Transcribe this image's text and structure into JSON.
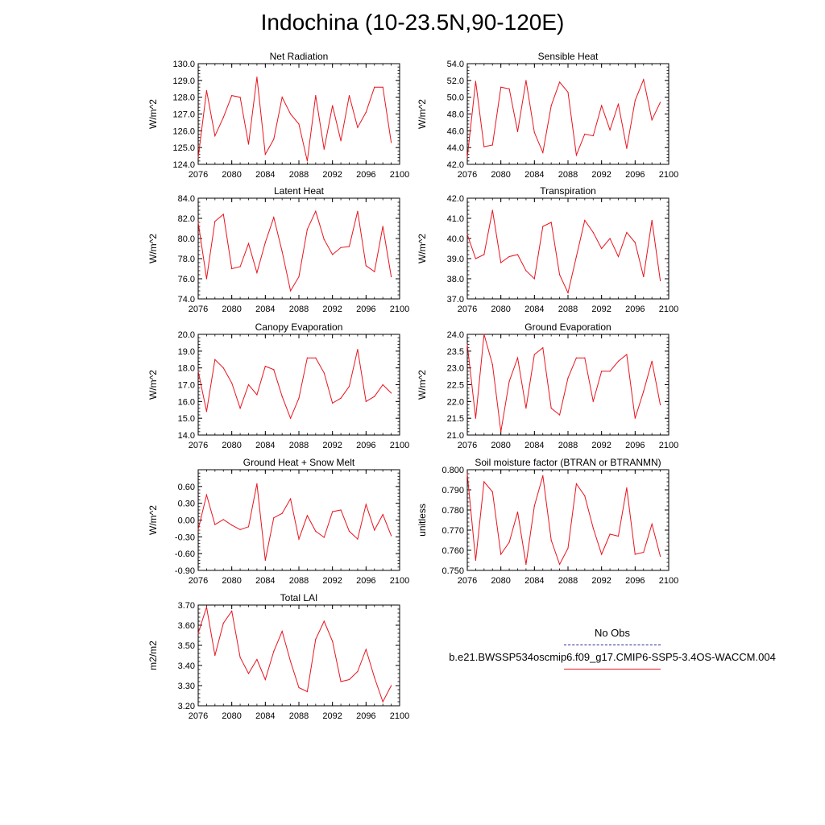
{
  "figure": {
    "title": "Indochina (10-23.5N,90-120E)",
    "line_color": "#e8141e"
  },
  "legend": {
    "obs_label": "No Obs",
    "obs_color": "#2b2b8f",
    "model_label": "b.e21.BWSSP534oscmip6.f09_g17.CMIP6-SSP5-3.4OS-WACCM.004",
    "model_color": "#e8141e"
  },
  "chart_data": [
    {
      "type": "line",
      "title": "Net Radiation",
      "ylabel": "W/m^2",
      "ylim": [
        124.0,
        130.0
      ],
      "yticks": [
        "124.0",
        "125.0",
        "126.0",
        "127.0",
        "128.0",
        "129.0",
        "130.0"
      ],
      "xlim": [
        2076,
        2100
      ],
      "xticks": [
        "2076",
        "2080",
        "2084",
        "2088",
        "2092",
        "2096",
        "2100"
      ],
      "x": [
        2076,
        2077,
        2078,
        2079,
        2080,
        2081,
        2082,
        2083,
        2084,
        2085,
        2086,
        2087,
        2088,
        2089,
        2090,
        2091,
        2092,
        2093,
        2094,
        2095,
        2096,
        2097,
        2098,
        2099
      ],
      "values": [
        124.4,
        128.4,
        125.7,
        126.8,
        128.1,
        128.0,
        125.2,
        129.2,
        124.6,
        125.5,
        128.0,
        127.0,
        126.4,
        124.2,
        128.1,
        124.9,
        127.5,
        125.4,
        128.1,
        126.2,
        127.1,
        128.6,
        128.6,
        125.3
      ]
    },
    {
      "type": "line",
      "title": "Sensible Heat",
      "ylabel": "W/m^2",
      "ylim": [
        42.0,
        54.0
      ],
      "yticks": [
        "42.0",
        "44.0",
        "46.0",
        "48.0",
        "50.0",
        "52.0",
        "54.0"
      ],
      "xlim": [
        2076,
        2100
      ],
      "xticks": [
        "2076",
        "2080",
        "2084",
        "2088",
        "2092",
        "2096",
        "2100"
      ],
      "x": [
        2076,
        2077,
        2078,
        2079,
        2080,
        2081,
        2082,
        2083,
        2084,
        2085,
        2086,
        2087,
        2088,
        2089,
        2090,
        2091,
        2092,
        2093,
        2094,
        2095,
        2096,
        2097,
        2098,
        2099
      ],
      "values": [
        42.8,
        51.9,
        44.1,
        44.3,
        51.2,
        51.0,
        45.9,
        52.0,
        45.8,
        43.4,
        49.0,
        51.8,
        50.6,
        43.1,
        45.6,
        45.4,
        49.0,
        46.1,
        49.2,
        43.9,
        49.6,
        52.1,
        47.3,
        49.4
      ]
    },
    {
      "type": "line",
      "title": "Latent Heat",
      "ylabel": "W/m^2",
      "ylim": [
        74.0,
        84.0
      ],
      "yticks": [
        "74.0",
        "76.0",
        "78.0",
        "80.0",
        "82.0",
        "84.0"
      ],
      "xlim": [
        2076,
        2100
      ],
      "xticks": [
        "2076",
        "2080",
        "2084",
        "2088",
        "2092",
        "2096",
        "2100"
      ],
      "x": [
        2076,
        2077,
        2078,
        2079,
        2080,
        2081,
        2082,
        2083,
        2084,
        2085,
        2086,
        2087,
        2088,
        2089,
        2090,
        2091,
        2092,
        2093,
        2094,
        2095,
        2096,
        2097,
        2098,
        2099
      ],
      "values": [
        81.6,
        76.0,
        81.7,
        82.4,
        77.0,
        77.2,
        79.5,
        76.6,
        79.6,
        82.1,
        78.7,
        74.8,
        76.2,
        80.9,
        82.7,
        79.9,
        78.4,
        79.1,
        79.2,
        82.7,
        77.3,
        76.7,
        81.2,
        76.2
      ]
    },
    {
      "type": "line",
      "title": "Transpiration",
      "ylabel": "W/m^2",
      "ylim": [
        37.0,
        42.0
      ],
      "yticks": [
        "37.0",
        "38.0",
        "39.0",
        "40.0",
        "41.0",
        "42.0"
      ],
      "xlim": [
        2076,
        2100
      ],
      "xticks": [
        "2076",
        "2080",
        "2084",
        "2088",
        "2092",
        "2096",
        "2100"
      ],
      "x": [
        2076,
        2077,
        2078,
        2079,
        2080,
        2081,
        2082,
        2083,
        2084,
        2085,
        2086,
        2087,
        2088,
        2089,
        2090,
        2091,
        2092,
        2093,
        2094,
        2095,
        2096,
        2097,
        2098,
        2099
      ],
      "values": [
        40.2,
        39.0,
        39.2,
        41.4,
        38.8,
        39.1,
        39.2,
        38.4,
        38.0,
        40.6,
        40.8,
        38.2,
        37.3,
        39.1,
        40.9,
        40.3,
        39.5,
        40.0,
        39.1,
        40.3,
        39.8,
        38.1,
        40.9,
        37.9
      ]
    },
    {
      "type": "line",
      "title": "Canopy Evaporation",
      "ylabel": "W/m^2",
      "ylim": [
        14.0,
        20.0
      ],
      "yticks": [
        "14.0",
        "15.0",
        "16.0",
        "17.0",
        "18.0",
        "19.0",
        "20.0"
      ],
      "xlim": [
        2076,
        2100
      ],
      "xticks": [
        "2076",
        "2080",
        "2084",
        "2088",
        "2092",
        "2096",
        "2100"
      ],
      "x": [
        2076,
        2077,
        2078,
        2079,
        2080,
        2081,
        2082,
        2083,
        2084,
        2085,
        2086,
        2087,
        2088,
        2089,
        2090,
        2091,
        2092,
        2093,
        2094,
        2095,
        2096,
        2097,
        2098,
        2099
      ],
      "values": [
        17.8,
        15.4,
        18.5,
        18.0,
        17.1,
        15.6,
        17.0,
        16.4,
        18.1,
        17.9,
        16.3,
        15.0,
        16.2,
        18.6,
        18.6,
        17.7,
        15.9,
        16.2,
        16.9,
        19.1,
        16.0,
        16.3,
        17.0,
        16.5
      ]
    },
    {
      "type": "line",
      "title": "Ground Evaporation",
      "ylabel": "W/m^2",
      "ylim": [
        21.0,
        24.0
      ],
      "yticks": [
        "21.0",
        "21.5",
        "22.0",
        "22.5",
        "23.0",
        "23.5",
        "24.0"
      ],
      "xlim": [
        2076,
        2100
      ],
      "xticks": [
        "2076",
        "2080",
        "2084",
        "2088",
        "2092",
        "2096",
        "2100"
      ],
      "x": [
        2076,
        2077,
        2078,
        2079,
        2080,
        2081,
        2082,
        2083,
        2084,
        2085,
        2086,
        2087,
        2088,
        2089,
        2090,
        2091,
        2092,
        2093,
        2094,
        2095,
        2096,
        2097,
        2098,
        2099
      ],
      "values": [
        23.7,
        21.5,
        24.0,
        23.1,
        21.1,
        22.6,
        23.3,
        21.8,
        23.4,
        23.6,
        21.8,
        21.6,
        22.7,
        23.3,
        23.3,
        22.0,
        22.9,
        22.9,
        23.2,
        23.4,
        21.5,
        22.3,
        23.2,
        21.9
      ]
    },
    {
      "type": "line",
      "title": "Ground Heat + Snow Melt",
      "ylabel": "W/m^2",
      "ylim": [
        -0.9,
        0.9
      ],
      "yticks": [
        "-0.90",
        "-0.60",
        "-0.30",
        "0.00",
        "0.30",
        "0.60"
      ],
      "xlim": [
        2076,
        2100
      ],
      "xticks": [
        "2076",
        "2080",
        "2084",
        "2088",
        "2092",
        "2096",
        "2100"
      ],
      "x": [
        2076,
        2077,
        2078,
        2079,
        2080,
        2081,
        2082,
        2083,
        2084,
        2085,
        2086,
        2087,
        2088,
        2089,
        2090,
        2091,
        2092,
        2093,
        2094,
        2095,
        2096,
        2097,
        2098,
        2099
      ],
      "values": [
        -0.17,
        0.45,
        -0.08,
        0.01,
        -0.09,
        -0.17,
        -0.12,
        0.65,
        -0.72,
        0.04,
        0.12,
        0.38,
        -0.34,
        0.08,
        -0.2,
        -0.31,
        0.15,
        0.18,
        -0.2,
        -0.34,
        0.28,
        -0.18,
        0.1,
        -0.28
      ]
    },
    {
      "type": "line",
      "title": "Soil moisture factor (BTRAN or BTRANMN)",
      "ylabel": "unitless",
      "ylim": [
        0.75,
        0.8
      ],
      "yticks": [
        "0.750",
        "0.760",
        "0.770",
        "0.780",
        "0.790",
        "0.800"
      ],
      "xlim": [
        2076,
        2100
      ],
      "xticks": [
        "2076",
        "2080",
        "2084",
        "2088",
        "2092",
        "2096",
        "2100"
      ],
      "x": [
        2076,
        2077,
        2078,
        2079,
        2080,
        2081,
        2082,
        2083,
        2084,
        2085,
        2086,
        2087,
        2088,
        2089,
        2090,
        2091,
        2092,
        2093,
        2094,
        2095,
        2096,
        2097,
        2098,
        2099
      ],
      "values": [
        0.798,
        0.755,
        0.794,
        0.789,
        0.758,
        0.764,
        0.779,
        0.753,
        0.782,
        0.797,
        0.765,
        0.753,
        0.761,
        0.793,
        0.787,
        0.771,
        0.758,
        0.768,
        0.767,
        0.791,
        0.758,
        0.759,
        0.773,
        0.757
      ]
    },
    {
      "type": "line",
      "title": "Total LAI",
      "ylabel": "m2/m2",
      "ylim": [
        3.2,
        3.7
      ],
      "yticks": [
        "3.20",
        "3.30",
        "3.40",
        "3.50",
        "3.60",
        "3.70"
      ],
      "xlim": [
        2076,
        2100
      ],
      "xticks": [
        "2076",
        "2080",
        "2084",
        "2088",
        "2092",
        "2096",
        "2100"
      ],
      "x": [
        2076,
        2077,
        2078,
        2079,
        2080,
        2081,
        2082,
        2083,
        2084,
        2085,
        2086,
        2087,
        2088,
        2089,
        2090,
        2091,
        2092,
        2093,
        2094,
        2095,
        2096,
        2097,
        2098,
        2099
      ],
      "values": [
        3.56,
        3.69,
        3.45,
        3.61,
        3.67,
        3.44,
        3.36,
        3.43,
        3.33,
        3.47,
        3.57,
        3.42,
        3.29,
        3.27,
        3.53,
        3.62,
        3.52,
        3.32,
        3.33,
        3.37,
        3.48,
        3.34,
        3.22,
        3.3
      ]
    }
  ]
}
